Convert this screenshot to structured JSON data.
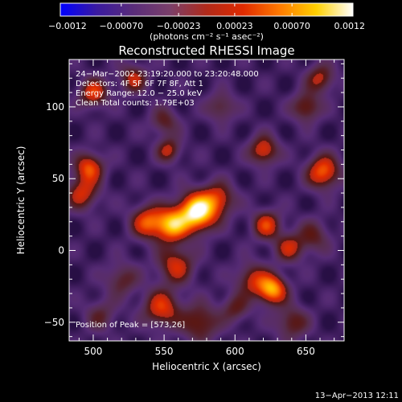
{
  "chart_data": {
    "type": "heatmap",
    "title": "Reconstructed RHESSI Image",
    "xlabel": "Heliocentric X (arcsec)",
    "ylabel": "Heliocentric Y (arcsec)",
    "xlim": [
      483,
      677
    ],
    "ylim": [
      -63,
      133
    ],
    "x_ticks": [
      500,
      550,
      600,
      650
    ],
    "x_tick_labels": [
      "500",
      "550",
      "600",
      "650"
    ],
    "y_ticks": [
      -50,
      0,
      50,
      100
    ],
    "y_tick_labels": [
      "−50",
      "0",
      "50",
      "100"
    ],
    "colorbar": {
      "label": "(photons cm⁻² s⁻¹ asec⁻²)",
      "range": [
        -0.0012,
        0.0012
      ],
      "tick_values": [
        -0.0012,
        -0.0007,
        -0.00023,
        0.00023,
        0.0007,
        0.0012
      ],
      "tick_labels": [
        "−0.0012",
        "−0.00070",
        "−0.00023",
        "0.00023",
        "0.00070",
        "0.0012"
      ],
      "colormap": [
        "#0000ff",
        "#3a1aa0",
        "#5a2d7a",
        "#7a3f6a",
        "#b02a1a",
        "#e02a00",
        "#ff7a00",
        "#ffd000",
        "#ffffff"
      ]
    },
    "annotations": [
      "24−Mar−2002 23:19:20.000 to 23:20:48.000",
      "Detectors: 4F 5F 6F 7F 8F, Att 1",
      "Energy Range: 12.0 − 25.0 keV",
      "Clean    Total counts: 1.79E+03"
    ],
    "peak_label": "Position of Peak = [573,26]",
    "timestamp": "13−Apr−2013 12:11",
    "sources": [
      {
        "x": 573,
        "y": 27,
        "amp": 1.0,
        "sigma": 9
      },
      {
        "x": 555,
        "y": 18,
        "amp": 0.75,
        "sigma": 8
      },
      {
        "x": 538,
        "y": 20,
        "amp": 0.55,
        "sigma": 8
      },
      {
        "x": 588,
        "y": 36,
        "amp": 0.45,
        "sigma": 8
      },
      {
        "x": 626,
        "y": -27,
        "amp": 0.75,
        "sigma": 7
      },
      {
        "x": 612,
        "y": -20,
        "amp": 0.4,
        "sigma": 8
      },
      {
        "x": 497,
        "y": 58,
        "amp": 0.55,
        "sigma": 7
      },
      {
        "x": 492,
        "y": 40,
        "amp": 0.45,
        "sigma": 8
      },
      {
        "x": 500,
        "y": 110,
        "amp": 0.5,
        "sigma": 7
      },
      {
        "x": 528,
        "y": 120,
        "amp": 0.4,
        "sigma": 7
      },
      {
        "x": 553,
        "y": 70,
        "amp": 0.4,
        "sigma": 6
      },
      {
        "x": 550,
        "y": 90,
        "amp": 0.3,
        "sigma": 7
      },
      {
        "x": 558,
        "y": -10,
        "amp": 0.45,
        "sigma": 9
      },
      {
        "x": 548,
        "y": -40,
        "amp": 0.5,
        "sigma": 9
      },
      {
        "x": 575,
        "y": -50,
        "amp": 0.4,
        "sigma": 9
      },
      {
        "x": 620,
        "y": 70,
        "amp": 0.5,
        "sigma": 7
      },
      {
        "x": 662,
        "y": 55,
        "amp": 0.6,
        "sigma": 8
      },
      {
        "x": 650,
        "y": 100,
        "amp": 0.4,
        "sigma": 7
      },
      {
        "x": 660,
        "y": 120,
        "amp": 0.4,
        "sigma": 7
      },
      {
        "x": 622,
        "y": 18,
        "amp": 0.5,
        "sigma": 7
      },
      {
        "x": 638,
        "y": 2,
        "amp": 0.4,
        "sigma": 7
      },
      {
        "x": 655,
        "y": 10,
        "amp": 0.3,
        "sigma": 8
      },
      {
        "x": 590,
        "y": 100,
        "amp": 0.3,
        "sigma": 7
      },
      {
        "x": 520,
        "y": -20,
        "amp": 0.3,
        "sigma": 8
      },
      {
        "x": 505,
        "y": -45,
        "amp": 0.25,
        "sigma": 8
      },
      {
        "x": 640,
        "y": -50,
        "amp": 0.35,
        "sigma": 8
      },
      {
        "x": 600,
        "y": -40,
        "amp": 0.3,
        "sigma": 7
      }
    ]
  }
}
